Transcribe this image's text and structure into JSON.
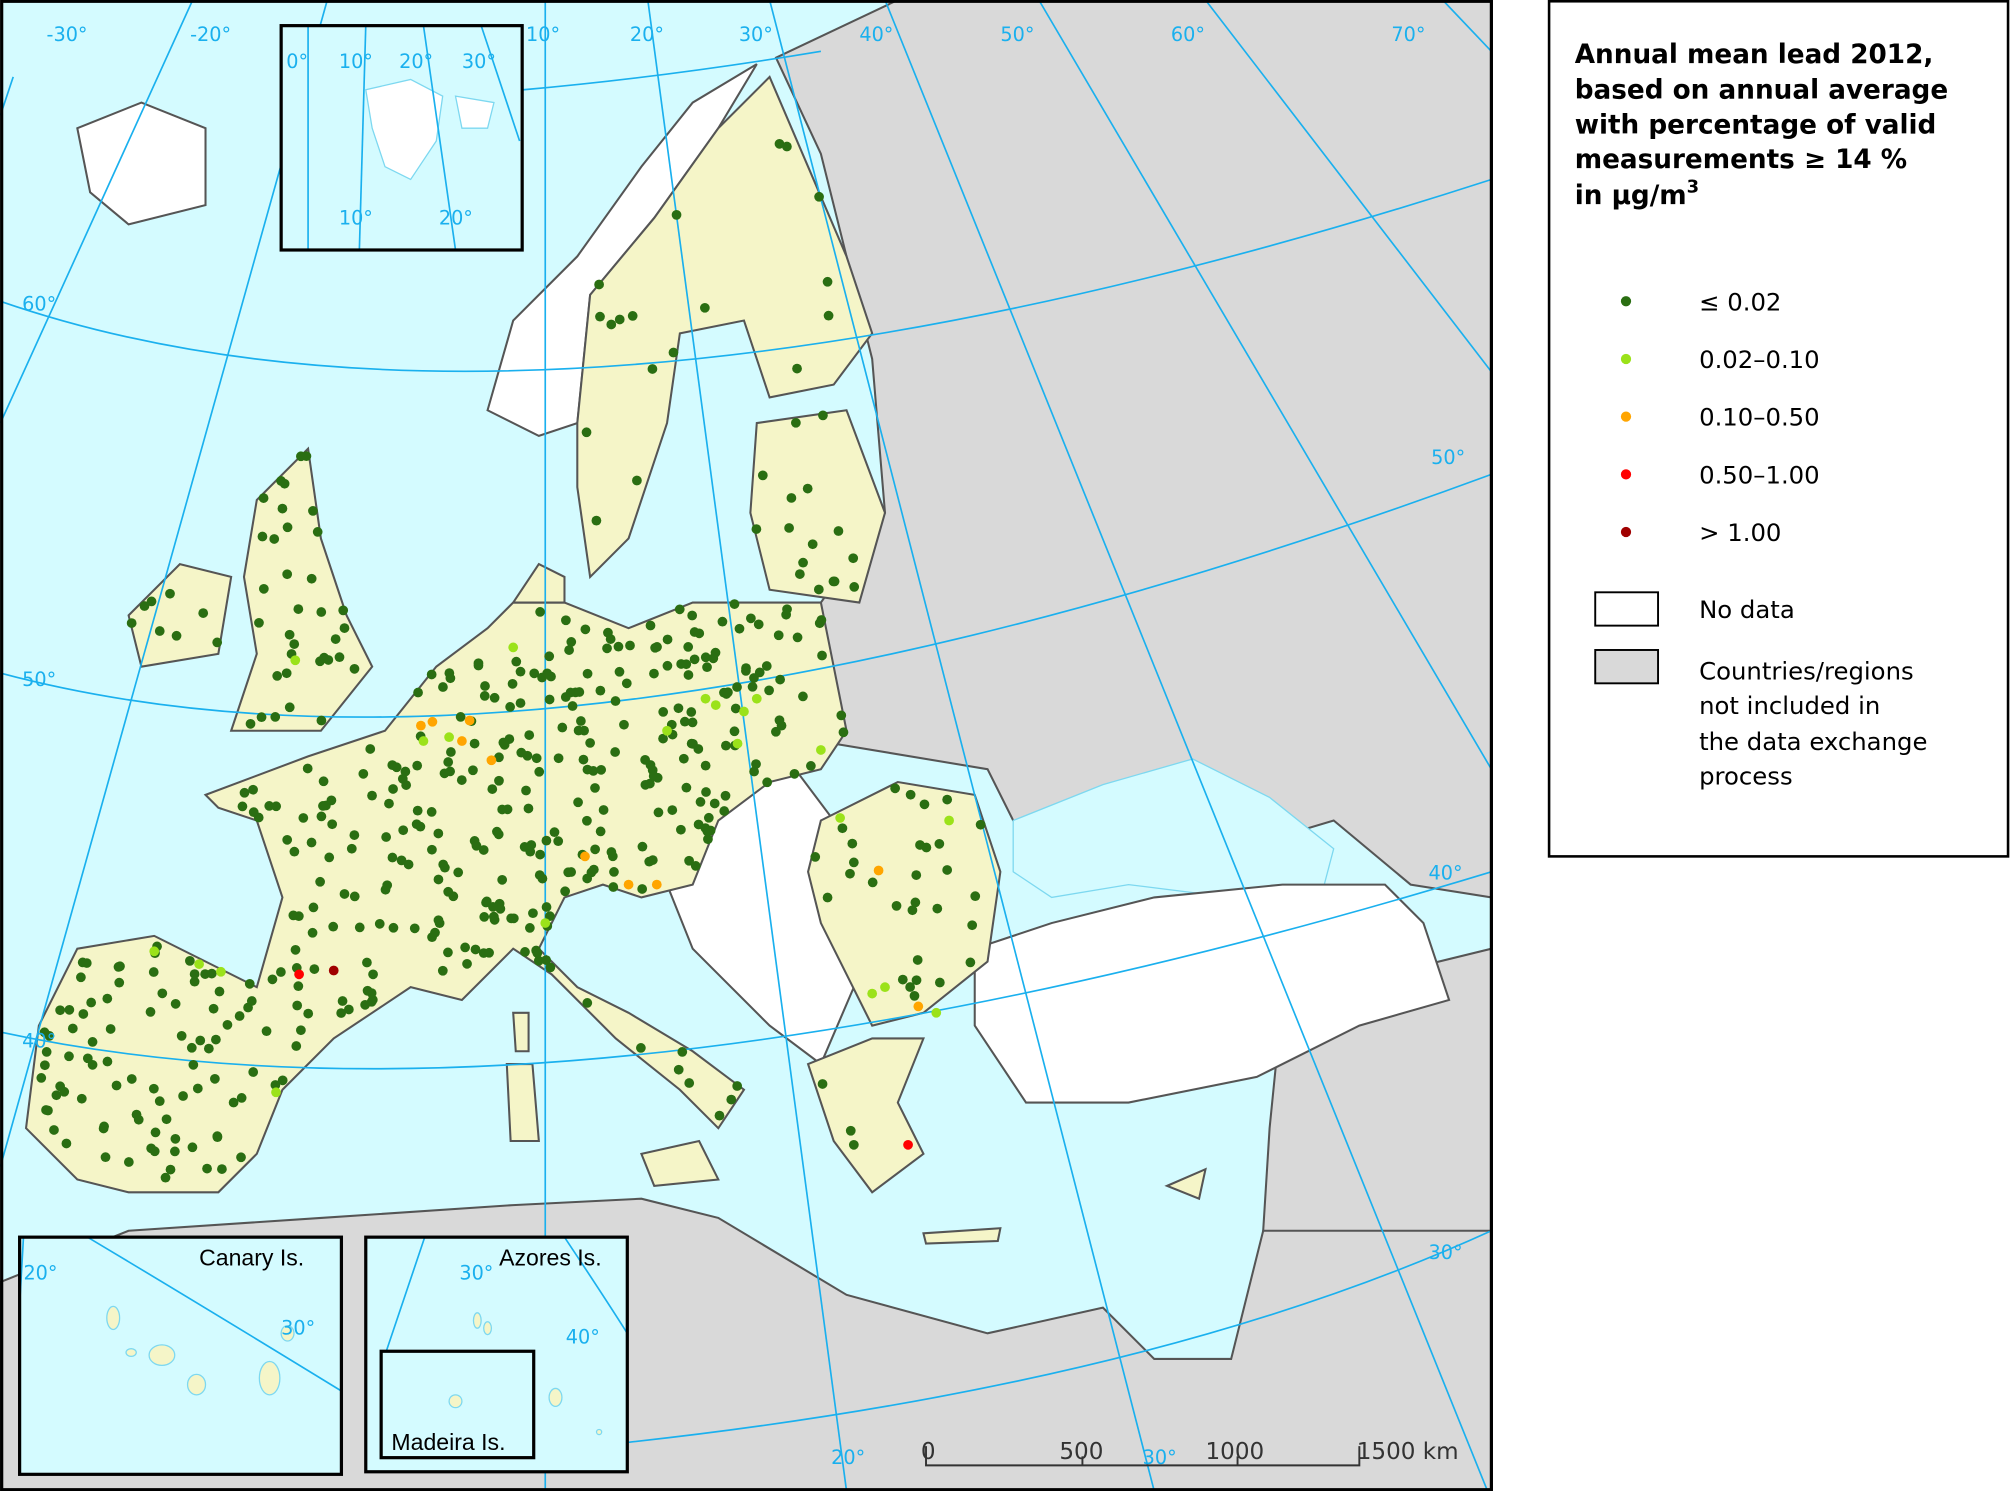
{
  "legend": {
    "title_lines": [
      "Annual mean lead 2012,",
      "based on annual average",
      "with percentage of valid",
      "measurements ≥ 14 %",
      "in µg/m"
    ],
    "title_superscript": "3",
    "classes": [
      {
        "label": "≤ 0.02",
        "color": "#2a6e12"
      },
      {
        "label": "0.02–0.10",
        "color": "#9be21a"
      },
      {
        "label": "0.10–0.50",
        "color": "#ffa500"
      },
      {
        "label": "0.50–1.00",
        "color": "#ff0000"
      },
      {
        "label": "> 1.00",
        "color": "#a00000"
      }
    ],
    "no_data": {
      "label": "No data",
      "color": "#ffffff"
    },
    "not_included": {
      "label_lines": [
        "Countries/regions",
        "not included in",
        "the data exchange",
        "process"
      ],
      "color": "#d9d9d9"
    }
  },
  "colors": {
    "sea": "#d4fbff",
    "land_included": "#f5f5c8",
    "graticule": "#1ab0ee"
  },
  "graticule_labels": {
    "top": [
      "-30°",
      "-20°",
      "10°",
      "20°",
      "30°",
      "40°",
      "50°",
      "60°",
      "70°"
    ],
    "left": [
      "60°",
      "50°",
      "40°"
    ],
    "right": [
      "50°",
      "40°",
      "30°"
    ],
    "bottom": [
      "20°",
      "30°"
    ]
  },
  "insets": {
    "svalbard": {
      "labels": [
        "0°",
        "10°",
        "20°",
        "30°",
        "10°",
        "20°"
      ]
    },
    "canary": {
      "title": "Canary Is.",
      "labels": [
        "20°",
        "30°"
      ]
    },
    "azores": {
      "title": "Azores Is.",
      "labels": [
        "30°",
        "40°"
      ]
    },
    "madeira": {
      "title": "Madeira Is."
    }
  },
  "scale_bar": {
    "ticks": [
      "0",
      "500",
      "1000",
      "1500 km"
    ]
  }
}
